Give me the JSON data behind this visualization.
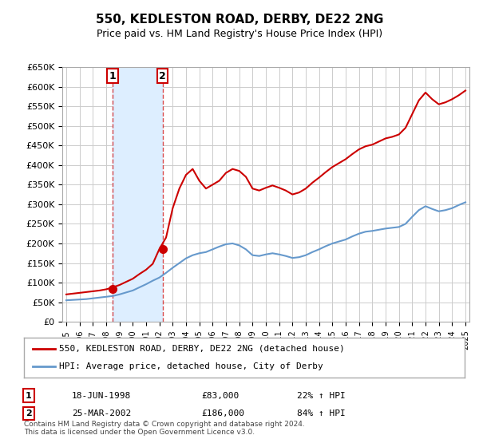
{
  "title": "550, KEDLESTON ROAD, DERBY, DE22 2NG",
  "subtitle": "Price paid vs. HM Land Registry's House Price Index (HPI)",
  "legend_line1": "550, KEDLESTON ROAD, DERBY, DE22 2NG (detached house)",
  "legend_line2": "HPI: Average price, detached house, City of Derby",
  "sale1_label": "1",
  "sale1_date": "18-JUN-1998",
  "sale1_price": "£83,000",
  "sale1_hpi": "22% ↑ HPI",
  "sale1_year": 1998.46,
  "sale1_value": 83000,
  "sale2_label": "2",
  "sale2_date": "25-MAR-2002",
  "sale2_price": "£186,000",
  "sale2_hpi": "84% ↑ HPI",
  "sale2_year": 2002.23,
  "sale2_value": 186000,
  "ylim": [
    0,
    650000
  ],
  "xlim_start": 1995,
  "xlim_end": 2025,
  "background_color": "#ffffff",
  "grid_color": "#cccccc",
  "red_color": "#cc0000",
  "blue_color": "#6699cc",
  "shade_color": "#ddeeff",
  "footnote": "Contains HM Land Registry data © Crown copyright and database right 2024.\nThis data is licensed under the Open Government Licence v3.0.",
  "hpi_x": [
    1995,
    1995.5,
    1996,
    1996.5,
    1997,
    1997.5,
    1998,
    1998.5,
    1999,
    1999.5,
    2000,
    2000.5,
    2001,
    2001.5,
    2002,
    2002.5,
    2003,
    2003.5,
    2004,
    2004.5,
    2005,
    2005.5,
    2006,
    2006.5,
    2007,
    2007.5,
    2008,
    2008.5,
    2009,
    2009.5,
    2010,
    2010.5,
    2011,
    2011.5,
    2012,
    2012.5,
    2013,
    2013.5,
    2014,
    2014.5,
    2015,
    2015.5,
    2016,
    2016.5,
    2017,
    2017.5,
    2018,
    2018.5,
    2019,
    2019.5,
    2020,
    2020.5,
    2021,
    2021.5,
    2022,
    2022.5,
    2023,
    2023.5,
    2024,
    2024.5,
    2025
  ],
  "hpi_y": [
    55000,
    56000,
    57000,
    58000,
    60000,
    62000,
    64000,
    66000,
    70000,
    75000,
    80000,
    88000,
    96000,
    105000,
    113000,
    125000,
    138000,
    150000,
    162000,
    170000,
    175000,
    178000,
    185000,
    192000,
    198000,
    200000,
    195000,
    185000,
    170000,
    168000,
    172000,
    175000,
    172000,
    168000,
    163000,
    165000,
    170000,
    178000,
    185000,
    193000,
    200000,
    205000,
    210000,
    218000,
    225000,
    230000,
    232000,
    235000,
    238000,
    240000,
    242000,
    250000,
    268000,
    285000,
    295000,
    288000,
    282000,
    285000,
    290000,
    298000,
    305000
  ],
  "red_x": [
    1995,
    1995.5,
    1996,
    1996.5,
    1997,
    1997.5,
    1998,
    1998.5,
    1999,
    1999.5,
    2000,
    2000.5,
    2001,
    2001.5,
    2002,
    2002.5,
    2003,
    2003.5,
    2004,
    2004.5,
    2005,
    2005.5,
    2006,
    2006.5,
    2007,
    2007.5,
    2008,
    2008.5,
    2009,
    2009.5,
    2010,
    2010.5,
    2011,
    2011.5,
    2012,
    2012.5,
    2013,
    2013.5,
    2014,
    2014.5,
    2015,
    2015.5,
    2016,
    2016.5,
    2017,
    2017.5,
    2018,
    2018.5,
    2019,
    2019.5,
    2020,
    2020.5,
    2021,
    2021.5,
    2022,
    2022.5,
    2023,
    2023.5,
    2024,
    2024.5,
    2025
  ],
  "red_y": [
    70000,
    72000,
    74000,
    76000,
    78000,
    80000,
    83000,
    88000,
    94000,
    102000,
    110000,
    122000,
    133000,
    148000,
    186000,
    215000,
    290000,
    340000,
    375000,
    390000,
    360000,
    340000,
    350000,
    360000,
    380000,
    390000,
    385000,
    370000,
    340000,
    335000,
    342000,
    348000,
    342000,
    335000,
    325000,
    330000,
    340000,
    355000,
    368000,
    382000,
    395000,
    405000,
    415000,
    428000,
    440000,
    448000,
    452000,
    460000,
    468000,
    472000,
    478000,
    495000,
    530000,
    565000,
    585000,
    568000,
    555000,
    560000,
    568000,
    578000,
    590000
  ]
}
